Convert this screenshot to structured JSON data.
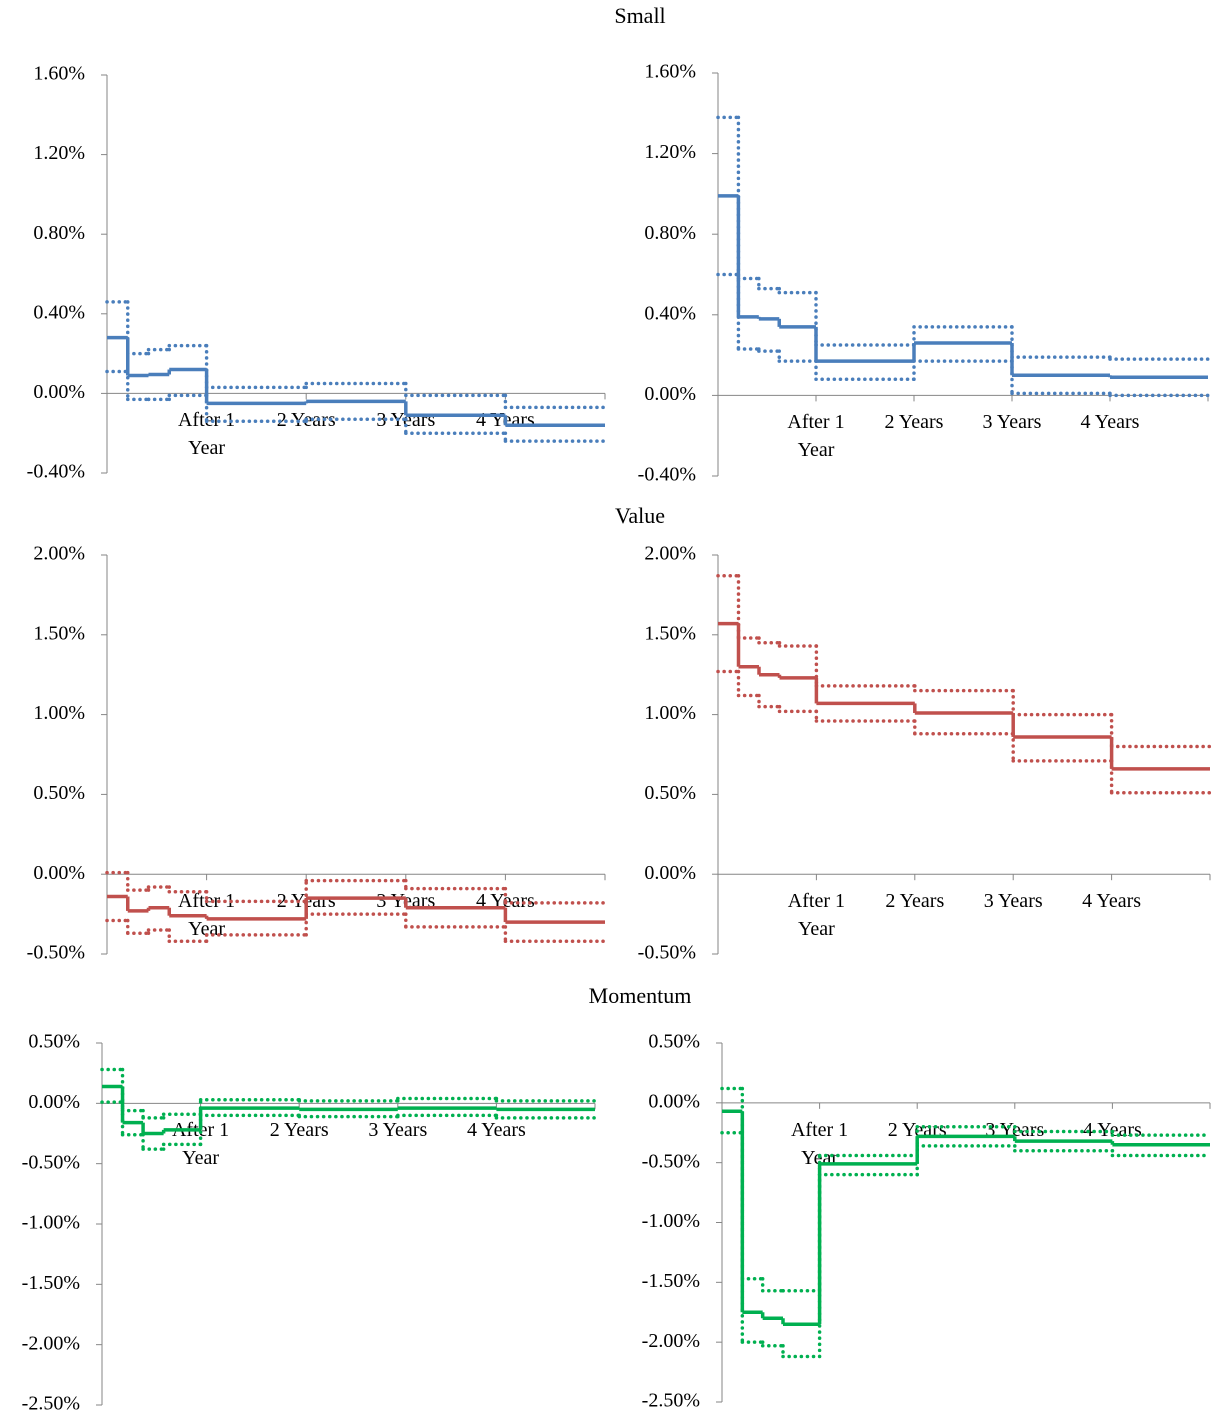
{
  "chart_data": [
    {
      "type": "line",
      "title": "Small",
      "x": [
        2.5,
        5,
        7.5,
        12,
        24,
        36,
        48,
        60
      ],
      "xlim": [
        0,
        60
      ],
      "xticks": [
        {
          "value": 12,
          "label": "After 1 Year"
        },
        {
          "value": 24,
          "label": "2 Years"
        },
        {
          "value": 36,
          "label": "3 Years"
        },
        {
          "value": 48,
          "label": "4 Years"
        }
      ],
      "ylim": [
        -0.4,
        1.6
      ],
      "yticks": [
        {
          "value": -0.4,
          "label": "-0.40%"
        },
        {
          "value": 0,
          "label": "0.00%"
        },
        {
          "value": 0.4,
          "label": "0.40%"
        },
        {
          "value": 0.8,
          "label": "0.80%"
        },
        {
          "value": 1.2,
          "label": "1.20%"
        },
        {
          "value": 1.6,
          "label": "1.60%"
        }
      ],
      "series": [
        {
          "color": "#4a7ebb",
          "style": "solid",
          "values": [
            0.28,
            0.09,
            0.095,
            0.12,
            -0.05,
            -0.04,
            -0.11,
            -0.16
          ]
        },
        {
          "color": "#4a7ebb",
          "style": "dotted",
          "values": [
            0.46,
            0.2,
            0.22,
            0.24,
            0.03,
            0.05,
            -0.01,
            -0.07
          ]
        },
        {
          "color": "#4a7ebb",
          "style": "dotted",
          "values": [
            0.11,
            -0.03,
            -0.03,
            -0.01,
            -0.14,
            -0.13,
            -0.2,
            -0.24
          ]
        }
      ]
    },
    {
      "type": "line",
      "x": [
        2.5,
        5,
        7.5,
        12,
        24,
        36,
        48,
        60
      ],
      "xlim": [
        0,
        60
      ],
      "xticks": [
        {
          "value": 12,
          "label": "After 1 Year"
        },
        {
          "value": 24,
          "label": "2 Years"
        },
        {
          "value": 36,
          "label": "3 Years"
        },
        {
          "value": 48,
          "label": "4 Years"
        }
      ],
      "ylim": [
        -0.4,
        1.6
      ],
      "yticks": [
        {
          "value": -0.4,
          "label": "-0.40%"
        },
        {
          "value": 0,
          "label": "0.00%"
        },
        {
          "value": 0.4,
          "label": "0.40%"
        },
        {
          "value": 0.8,
          "label": "0.80%"
        },
        {
          "value": 1.2,
          "label": "1.20%"
        },
        {
          "value": 1.6,
          "label": "1.60%"
        }
      ],
      "series": [
        {
          "color": "#4a7ebb",
          "style": "solid",
          "values": [
            0.99,
            0.39,
            0.38,
            0.34,
            0.17,
            0.26,
            0.1,
            0.09
          ]
        },
        {
          "color": "#4a7ebb",
          "style": "dotted",
          "values": [
            1.38,
            0.58,
            0.53,
            0.51,
            0.25,
            0.34,
            0.19,
            0.18
          ]
        },
        {
          "color": "#4a7ebb",
          "style": "dotted",
          "values": [
            0.6,
            0.23,
            0.22,
            0.17,
            0.08,
            0.17,
            0.01,
            0
          ]
        }
      ]
    },
    {
      "type": "line",
      "title": "Value",
      "x": [
        2.5,
        5,
        7.5,
        12,
        24,
        36,
        48,
        60
      ],
      "xlim": [
        0,
        60
      ],
      "xticks": [
        {
          "value": 12,
          "label": "After 1 Year"
        },
        {
          "value": 24,
          "label": "2 Years"
        },
        {
          "value": 36,
          "label": "3 Years"
        },
        {
          "value": 48,
          "label": "4 Years"
        }
      ],
      "ylim": [
        -0.5,
        2.0
      ],
      "yticks": [
        {
          "value": -0.5,
          "label": "-0.50%"
        },
        {
          "value": 0,
          "label": "0.00%"
        },
        {
          "value": 0.5,
          "label": "0.50%"
        },
        {
          "value": 1.0,
          "label": "1.00%"
        },
        {
          "value": 1.5,
          "label": "1.50%"
        },
        {
          "value": 2.0,
          "label": "2.00%"
        }
      ],
      "series": [
        {
          "color": "#c0504d",
          "style": "solid",
          "values": [
            -0.14,
            -0.23,
            -0.21,
            -0.26,
            -0.28,
            -0.15,
            -0.21,
            -0.3
          ]
        },
        {
          "color": "#c0504d",
          "style": "dotted",
          "values": [
            0.01,
            -0.1,
            -0.08,
            -0.11,
            -0.17,
            -0.04,
            -0.09,
            -0.18
          ]
        },
        {
          "color": "#c0504d",
          "style": "dotted",
          "values": [
            -0.29,
            -0.37,
            -0.35,
            -0.42,
            -0.38,
            -0.25,
            -0.33,
            -0.42
          ]
        }
      ]
    },
    {
      "type": "line",
      "x": [
        2.5,
        5,
        7.5,
        12,
        24,
        36,
        48,
        60
      ],
      "xlim": [
        0,
        60
      ],
      "xticks": [
        {
          "value": 12,
          "label": "After 1 Year"
        },
        {
          "value": 24,
          "label": "2 Years"
        },
        {
          "value": 36,
          "label": "3 Years"
        },
        {
          "value": 48,
          "label": "4 Years"
        }
      ],
      "ylim": [
        -0.5,
        2.0
      ],
      "yticks": [
        {
          "value": -0.5,
          "label": "-0.50%"
        },
        {
          "value": 0,
          "label": "0.00%"
        },
        {
          "value": 0.5,
          "label": "0.50%"
        },
        {
          "value": 1.0,
          "label": "1.00%"
        },
        {
          "value": 1.5,
          "label": "1.50%"
        },
        {
          "value": 2.0,
          "label": "2.00%"
        }
      ],
      "series": [
        {
          "color": "#c0504d",
          "style": "solid",
          "values": [
            1.57,
            1.3,
            1.25,
            1.23,
            1.07,
            1.01,
            0.86,
            0.66
          ]
        },
        {
          "color": "#c0504d",
          "style": "dotted",
          "values": [
            1.87,
            1.48,
            1.45,
            1.43,
            1.18,
            1.15,
            1.0,
            0.8
          ]
        },
        {
          "color": "#c0504d",
          "style": "dotted",
          "values": [
            1.27,
            1.12,
            1.05,
            1.02,
            0.96,
            0.88,
            0.71,
            0.51
          ]
        }
      ]
    },
    {
      "type": "line",
      "title": "Momentum",
      "x": [
        2.5,
        5,
        7.5,
        12,
        24,
        36,
        48,
        60
      ],
      "xlim": [
        0,
        60
      ],
      "xticks": [
        {
          "value": 12,
          "label": "After 1 Year"
        },
        {
          "value": 24,
          "label": "2 Years"
        },
        {
          "value": 36,
          "label": "3 Years"
        },
        {
          "value": 48,
          "label": "4 Years"
        }
      ],
      "ylim": [
        -2.5,
        0.5
      ],
      "yticks": [
        {
          "value": -2.5,
          "label": "-2.50%"
        },
        {
          "value": -2.0,
          "label": "-2.00%"
        },
        {
          "value": -1.5,
          "label": "-1.50%"
        },
        {
          "value": -1.0,
          "label": "-1.00%"
        },
        {
          "value": -0.5,
          "label": "-0.50%"
        },
        {
          "value": 0,
          "label": "0.00%"
        },
        {
          "value": 0.5,
          "label": "0.50%"
        }
      ],
      "series": [
        {
          "color": "#00b050",
          "style": "solid",
          "values": [
            0.14,
            -0.16,
            -0.25,
            -0.22,
            -0.04,
            -0.05,
            -0.04,
            -0.05
          ]
        },
        {
          "color": "#00b050",
          "style": "dotted",
          "values": [
            0.28,
            -0.06,
            -0.12,
            -0.09,
            0.03,
            0.02,
            0.04,
            0.02
          ]
        },
        {
          "color": "#00b050",
          "style": "dotted",
          "values": [
            0.01,
            -0.26,
            -0.38,
            -0.34,
            -0.1,
            -0.11,
            -0.1,
            -0.12
          ]
        }
      ]
    },
    {
      "type": "line",
      "x": [
        2.5,
        5,
        7.5,
        12,
        24,
        36,
        48,
        60
      ],
      "xlim": [
        0,
        60
      ],
      "xticks": [
        {
          "value": 12,
          "label": "After 1 Year"
        },
        {
          "value": 24,
          "label": "2 Years"
        },
        {
          "value": 36,
          "label": "3 Years"
        },
        {
          "value": 48,
          "label": "4 Years"
        }
      ],
      "ylim": [
        -2.5,
        0.5
      ],
      "yticks": [
        {
          "value": -2.5,
          "label": "-2.50%"
        },
        {
          "value": -2.0,
          "label": "-2.00%"
        },
        {
          "value": -1.5,
          "label": "-1.50%"
        },
        {
          "value": -1.0,
          "label": "-1.00%"
        },
        {
          "value": -0.5,
          "label": "-0.50%"
        },
        {
          "value": 0,
          "label": "0.00%"
        },
        {
          "value": 0.5,
          "label": "0.50%"
        }
      ],
      "series": [
        {
          "color": "#00b050",
          "style": "solid",
          "values": [
            -0.07,
            -1.75,
            -1.8,
            -1.85,
            -0.51,
            -0.28,
            -0.32,
            -0.35
          ]
        },
        {
          "color": "#00b050",
          "style": "dotted",
          "values": [
            0.12,
            -1.47,
            -1.57,
            -1.57,
            -0.44,
            -0.2,
            -0.24,
            -0.27
          ]
        },
        {
          "color": "#00b050",
          "style": "dotted",
          "values": [
            -0.25,
            -2.0,
            -2.03,
            -2.12,
            -0.6,
            -0.36,
            -0.4,
            -0.44
          ]
        }
      ]
    }
  ]
}
